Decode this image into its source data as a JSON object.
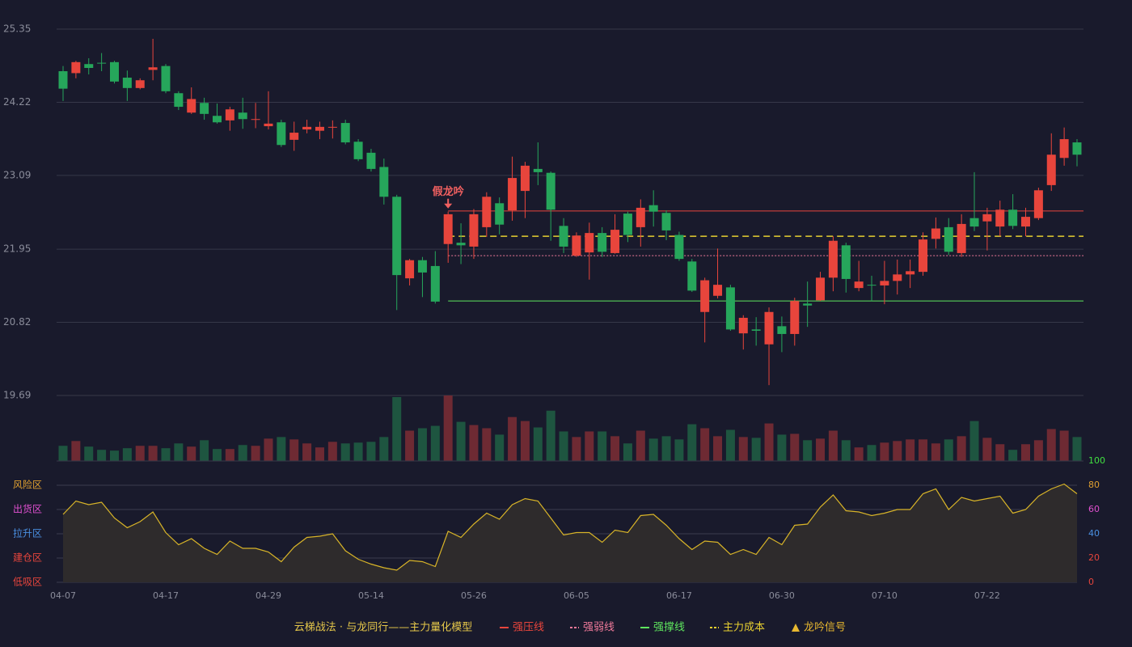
{
  "chart_data": {
    "type": "candlestick",
    "categories": [
      "04-07",
      null,
      null,
      null,
      null,
      null,
      null,
      null,
      "04-17",
      null,
      null,
      null,
      null,
      null,
      null,
      null,
      "04-29",
      null,
      null,
      null,
      null,
      null,
      null,
      null,
      "05-14",
      null,
      null,
      null,
      null,
      null,
      null,
      null,
      "05-26",
      null,
      null,
      null,
      null,
      null,
      null,
      null,
      "06-05",
      null,
      null,
      null,
      null,
      null,
      null,
      null,
      "06-17",
      null,
      null,
      null,
      null,
      null,
      null,
      null,
      "06-30",
      null,
      null,
      null,
      null,
      null,
      null,
      null,
      "07-10",
      null,
      null,
      null,
      null,
      null,
      null,
      null,
      "07-22",
      null,
      null,
      null,
      null,
      null,
      null,
      null
    ],
    "open": [
      24.7,
      24.67,
      24.81,
      24.83,
      24.84,
      24.6,
      24.44,
      24.72,
      24.78,
      24.36,
      24.06,
      24.21,
      24.01,
      23.94,
      24.06,
      23.95,
      23.85,
      23.91,
      23.64,
      23.8,
      23.78,
      23.83,
      23.9,
      23.61,
      23.44,
      23.22,
      22.76,
      21.5,
      21.78,
      21.69,
      22.03,
      22.05,
      21.99,
      22.29,
      22.66,
      22.55,
      22.85,
      23.19,
      23.13,
      22.31,
      21.85,
      21.9,
      22.2,
      21.89,
      22.5,
      22.29,
      22.63,
      22.51,
      22.17,
      21.76,
      20.98,
      21.23,
      21.36,
      20.65,
      20.71,
      20.48,
      20.76,
      20.64,
      21.11,
      21.16,
      21.51,
      22.01,
      21.35,
      21.4,
      21.39,
      21.46,
      21.56,
      21.6,
      22.11,
      22.29,
      21.89,
      22.43,
      22.38,
      22.3,
      22.56,
      22.3,
      22.43,
      22.94,
      23.36,
      23.6
    ],
    "high": [
      24.78,
      24.86,
      24.9,
      24.98,
      24.86,
      24.71,
      24.59,
      25.2,
      24.81,
      24.39,
      24.45,
      24.29,
      24.2,
      24.15,
      24.29,
      24.21,
      24.39,
      23.95,
      23.92,
      23.95,
      23.92,
      23.94,
      23.95,
      23.65,
      23.5,
      23.35,
      22.79,
      21.8,
      21.83,
      21.92,
      22.53,
      22.35,
      22.57,
      22.83,
      22.75,
      23.38,
      23.3,
      23.6,
      23.15,
      22.43,
      22.21,
      22.36,
      22.29,
      22.49,
      22.53,
      22.72,
      22.86,
      22.55,
      22.22,
      21.8,
      21.51,
      21.96,
      21.4,
      20.93,
      20.9,
      21.05,
      20.91,
      21.2,
      21.45,
      21.6,
      22.15,
      22.05,
      21.77,
      21.54,
      21.77,
      21.79,
      21.79,
      22.21,
      22.44,
      22.43,
      22.49,
      23.14,
      22.59,
      22.7,
      22.8,
      22.59,
      22.9,
      23.74,
      23.83,
      23.65
    ],
    "low": [
      24.24,
      24.59,
      24.65,
      24.7,
      24.51,
      24.24,
      24.42,
      24.56,
      24.36,
      24.1,
      24.04,
      23.95,
      23.89,
      23.78,
      23.81,
      23.82,
      23.8,
      23.53,
      23.47,
      23.74,
      23.65,
      23.66,
      23.57,
      23.31,
      23.15,
      22.64,
      21.01,
      21.39,
      21.21,
      21.11,
      21.74,
      21.72,
      21.8,
      22.14,
      22.18,
      22.39,
      22.43,
      22.94,
      22.08,
      21.89,
      21.83,
      21.48,
      21.83,
      21.88,
      22.06,
      21.99,
      22.3,
      22.09,
      21.77,
      21.29,
      20.51,
      21.19,
      20.69,
      20.4,
      20.46,
      19.85,
      20.36,
      20.46,
      20.75,
      21.15,
      21.3,
      21.28,
      21.3,
      21.15,
      21.1,
      21.25,
      21.35,
      21.54,
      21.96,
      21.86,
      21.83,
      22.23,
      21.93,
      22.15,
      22.26,
      22.15,
      22.4,
      22.85,
      23.24,
      23.23
    ],
    "close": [
      24.43,
      24.84,
      24.75,
      24.82,
      24.54,
      24.44,
      24.56,
      24.76,
      24.39,
      24.15,
      24.27,
      24.04,
      23.91,
      24.11,
      23.96,
      23.96,
      23.89,
      23.56,
      23.75,
      23.84,
      23.84,
      23.84,
      23.6,
      23.34,
      23.19,
      22.76,
      21.55,
      21.78,
      21.59,
      21.14,
      22.49,
      22.01,
      22.49,
      22.76,
      22.33,
      23.05,
      23.24,
      23.14,
      22.56,
      21.99,
      22.16,
      22.2,
      21.91,
      22.25,
      22.17,
      22.59,
      22.53,
      22.24,
      21.8,
      21.31,
      21.47,
      21.4,
      20.71,
      20.89,
      20.69,
      20.98,
      20.64,
      21.15,
      21.08,
      21.51,
      22.08,
      21.49,
      21.45,
      21.39,
      21.46,
      21.56,
      21.61,
      22.1,
      22.27,
      21.91,
      22.34,
      22.3,
      22.49,
      22.56,
      22.31,
      22.45,
      22.86,
      23.41,
      23.65,
      23.41
    ],
    "volume": [
      19,
      25,
      18,
      14,
      13,
      16,
      19,
      19,
      16,
      22,
      18,
      26,
      15,
      15,
      20,
      19,
      28,
      30,
      27,
      22,
      17,
      24,
      22,
      23,
      24,
      30,
      80,
      38,
      41,
      44,
      82,
      49,
      45,
      41,
      33,
      55,
      50,
      42,
      63,
      37,
      30,
      37,
      37,
      31,
      22,
      38,
      28,
      31,
      27,
      46,
      41,
      31,
      39,
      30,
      29,
      47,
      33,
      34,
      26,
      28,
      38,
      26,
      17,
      20,
      23,
      25,
      27,
      27,
      22,
      27,
      31,
      50,
      29,
      21,
      14,
      21,
      26,
      40,
      38,
      30
    ],
    "up_color": "#e8453c",
    "down_color": "#26a65b",
    "volume_up_color": "#6e2a33",
    "volume_down_color": "#1e5540",
    "ylim": [
      19.69,
      25.35
    ],
    "yticks": [
      25.35,
      24.22,
      23.09,
      21.95,
      20.82,
      19.69
    ],
    "grid": true,
    "levels": [
      {
        "name": "强压线",
        "value": 22.54,
        "color": "#e8453c",
        "dashed": false
      },
      {
        "name": "强弱线",
        "value": 21.85,
        "color": "#f07a9a",
        "dashed": true
      },
      {
        "name": "强撑线",
        "value": 21.15,
        "color": "#5ee65e",
        "dashed": false
      },
      {
        "name": "主力成本",
        "value": 22.15,
        "color": "#e8d030",
        "dashed": true
      }
    ],
    "annotation": {
      "text": "假龙吟",
      "index": 30,
      "color": "#f06060"
    },
    "signal_legend": {
      "name": "龙吟信号",
      "color": "#e8b830"
    },
    "legend_title": "云梯战法 · 与龙同行——主力量化模型",
    "indicator": {
      "values": [
        56,
        67,
        64,
        66,
        53,
        45,
        50,
        58,
        41,
        31,
        36,
        28,
        23,
        34,
        28,
        28,
        25,
        17,
        29,
        37,
        38,
        40,
        26,
        19,
        15,
        12,
        10,
        18,
        17,
        13,
        42,
        37,
        48,
        57,
        52,
        64,
        69,
        67,
        53,
        39,
        41,
        41,
        33,
        43,
        41,
        55,
        56,
        47,
        36,
        27,
        34,
        33,
        23,
        27,
        23,
        37,
        31,
        47,
        48,
        62,
        72,
        59,
        58,
        55,
        57,
        60,
        60,
        73,
        77,
        60,
        70,
        67,
        69,
        71,
        57,
        60,
        71,
        77,
        81,
        73
      ],
      "color": "#d8b428",
      "ylim": [
        0,
        100
      ],
      "yticks": [
        0,
        20,
        40,
        60,
        80,
        100
      ],
      "ytick_colors": [
        "#e8453c",
        "#e8453c",
        "#4a90e2",
        "#e050d0",
        "#e0a030",
        "#40e040"
      ],
      "zones": [
        {
          "label": "风险区",
          "value": 80,
          "color": "#e0a030"
        },
        {
          "label": "出货区",
          "value": 60,
          "color": "#e050d0"
        },
        {
          "label": "拉升区",
          "value": 40,
          "color": "#4a90e2"
        },
        {
          "label": "建仓区",
          "value": 20,
          "color": "#e8453c"
        },
        {
          "label": "低吸区",
          "value": 0,
          "color": "#e8453c"
        }
      ]
    }
  }
}
